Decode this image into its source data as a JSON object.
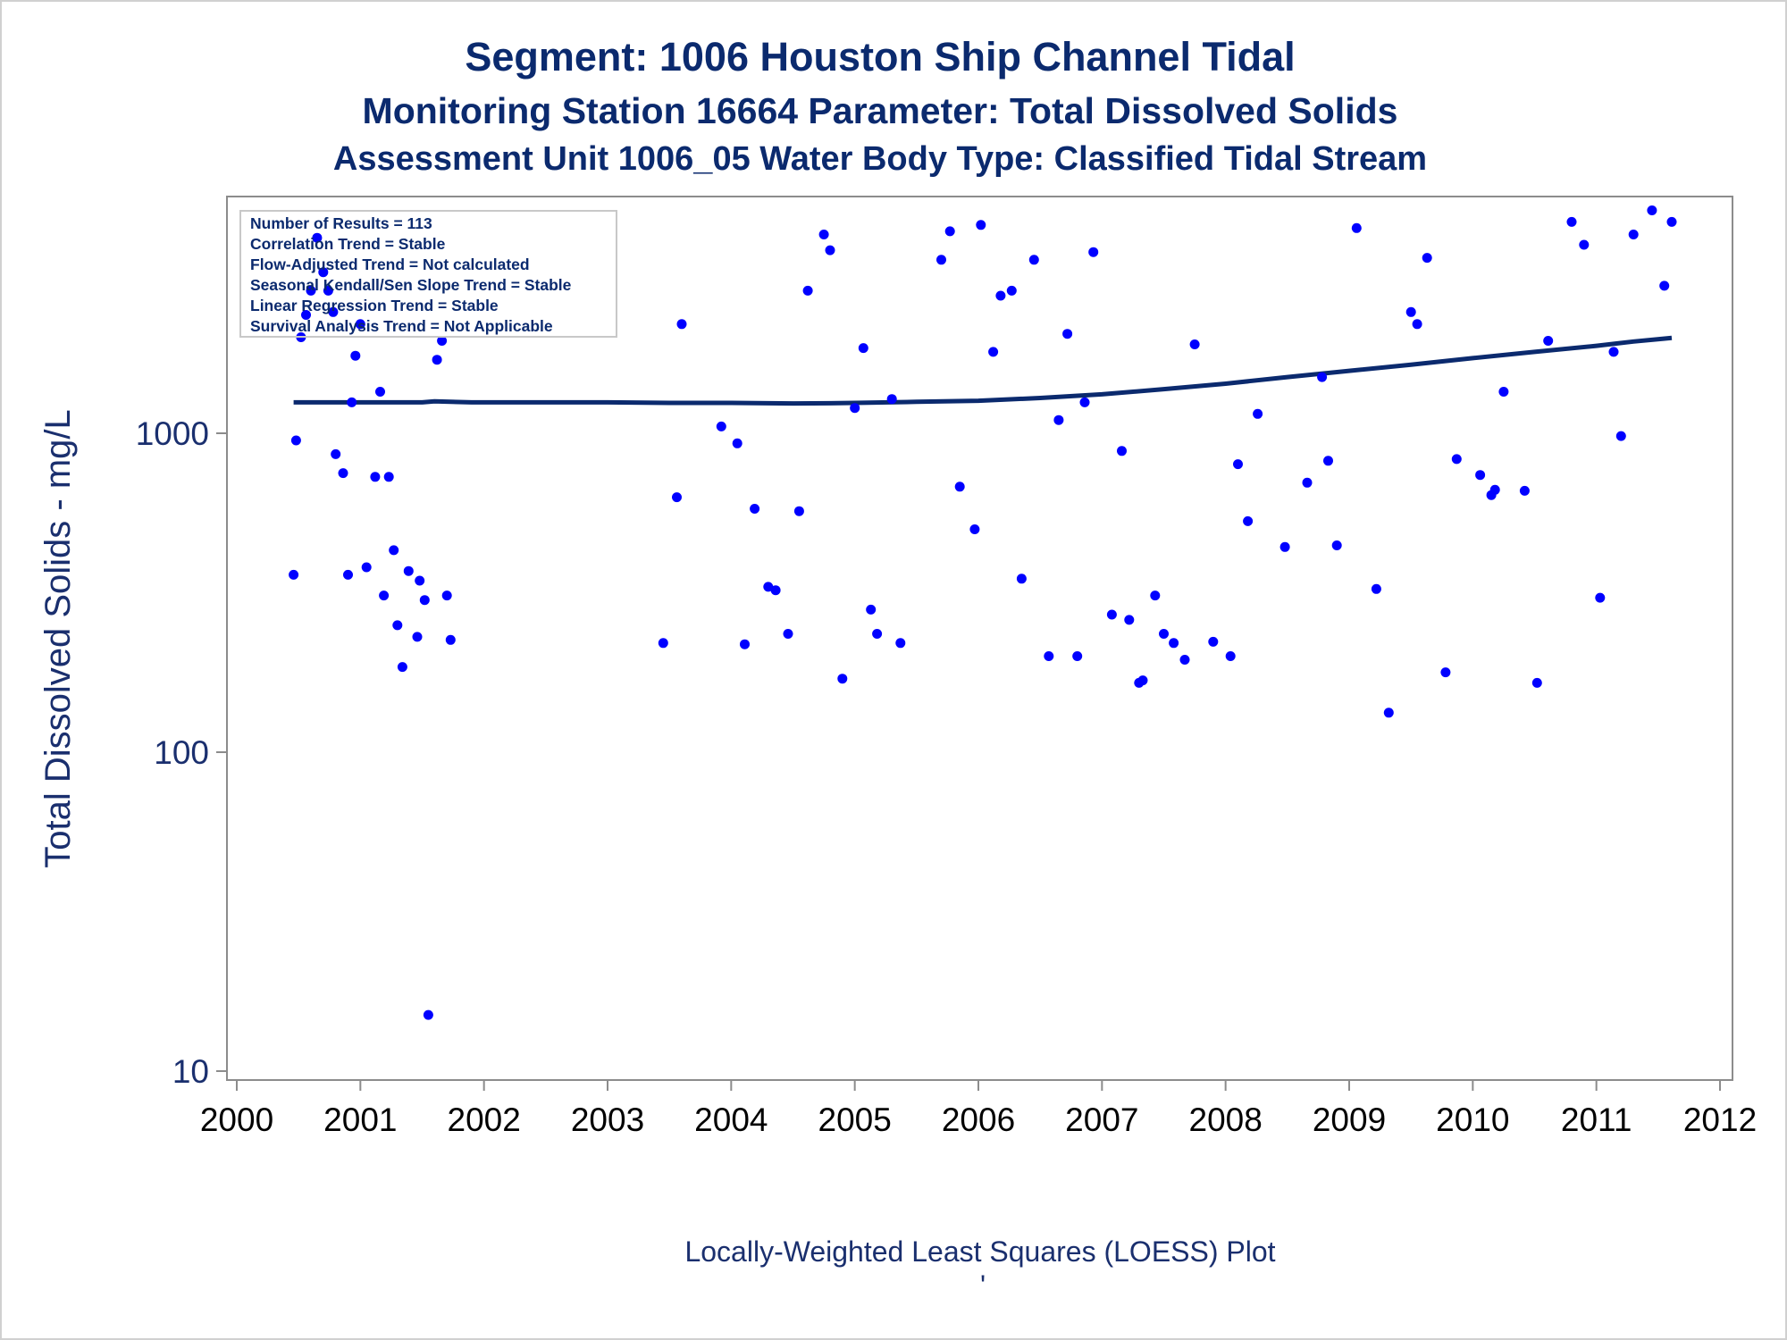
{
  "titles": {
    "line1": "Segment: 1006  Houston Ship Channel Tidal",
    "line2": "Monitoring Station 16664 Parameter: Total Dissolved Solids",
    "line3": "Assessment Unit 1006_05   Water Body Type: Classified Tidal Stream"
  },
  "inset": [
    "Number of Results = 113",
    "Correlation Trend = Stable",
    "Flow-Adjusted Trend = Not calculated",
    "Seasonal Kendall/Sen Slope Trend = Stable",
    "Linear Regression Trend = Stable",
    "Survival Analysis Trend = Not Applicable"
  ],
  "footnote": "Locally-Weighted Least Squares (LOESS) Plot",
  "footnote2": "'",
  "colors": {
    "points": "#0000ff",
    "loess": "#0b2a6e",
    "text": "#0b2a6e"
  },
  "chart_data": {
    "type": "scatter",
    "title": "Segment: 1006  Houston Ship Channel Tidal",
    "xlabel": "",
    "ylabel": "Total Dissolved Solids - mg/L",
    "x_ticks": [
      "2000",
      "2001",
      "2002",
      "2003",
      "2004",
      "2005",
      "2006",
      "2007",
      "2008",
      "2009",
      "2010",
      "2011",
      "2012"
    ],
    "y_ticks": [
      "10",
      "100",
      "1000"
    ],
    "xlim": [
      2000,
      2012.2
    ],
    "ylim": [
      9,
      5000
    ],
    "y_scale": "log",
    "grid": false,
    "series": [
      {
        "values": [
          [
            2000.46,
            360
          ],
          [
            2000.48,
            950
          ],
          [
            2000.52,
            2000
          ],
          [
            2000.56,
            2350
          ],
          [
            2000.6,
            2800
          ],
          [
            2000.65,
            4100
          ],
          [
            2000.7,
            3200
          ],
          [
            2000.74,
            2800
          ],
          [
            2000.78,
            2400
          ],
          [
            2000.8,
            860
          ],
          [
            2000.86,
            750
          ],
          [
            2000.9,
            360
          ],
          [
            2000.93,
            1250
          ],
          [
            2000.96,
            1750
          ],
          [
            2001.0,
            2200
          ],
          [
            2001.05,
            380
          ],
          [
            2001.12,
            730
          ],
          [
            2001.16,
            1350
          ],
          [
            2001.19,
            310
          ],
          [
            2001.23,
            730
          ],
          [
            2001.27,
            430
          ],
          [
            2001.3,
            250
          ],
          [
            2001.34,
            185
          ],
          [
            2001.39,
            370
          ],
          [
            2001.46,
            230
          ],
          [
            2001.48,
            345
          ],
          [
            2001.52,
            300
          ],
          [
            2001.55,
            15
          ],
          [
            2001.62,
            1700
          ],
          [
            2001.66,
            1950
          ],
          [
            2001.7,
            310
          ],
          [
            2001.73,
            225
          ],
          [
            2003.45,
            220
          ],
          [
            2003.56,
            630
          ],
          [
            2003.6,
            2200
          ],
          [
            2003.92,
            1050
          ],
          [
            2004.05,
            930
          ],
          [
            2004.11,
            218
          ],
          [
            2004.19,
            580
          ],
          [
            2004.3,
            330
          ],
          [
            2004.36,
            322
          ],
          [
            2004.46,
            235
          ],
          [
            2004.55,
            570
          ],
          [
            2004.62,
            2800
          ],
          [
            2004.75,
            4200
          ],
          [
            2004.8,
            3750
          ],
          [
            2004.9,
            170
          ],
          [
            2005.0,
            1200
          ],
          [
            2005.07,
            1850
          ],
          [
            2005.13,
            280
          ],
          [
            2005.18,
            235
          ],
          [
            2005.3,
            1280
          ],
          [
            2005.37,
            220
          ],
          [
            2005.7,
            3500
          ],
          [
            2005.77,
            4300
          ],
          [
            2005.85,
            680
          ],
          [
            2005.97,
            500
          ],
          [
            2006.02,
            4500
          ],
          [
            2006.12,
            1800
          ],
          [
            2006.18,
            2700
          ],
          [
            2006.27,
            2800
          ],
          [
            2006.35,
            350
          ],
          [
            2006.45,
            3500
          ],
          [
            2006.57,
            200
          ],
          [
            2006.65,
            1100
          ],
          [
            2006.72,
            2050
          ],
          [
            2006.8,
            200
          ],
          [
            2006.86,
            1250
          ],
          [
            2006.93,
            3700
          ],
          [
            2007.08,
            270
          ],
          [
            2007.16,
            880
          ],
          [
            2007.22,
            260
          ],
          [
            2007.3,
            165
          ],
          [
            2007.33,
            168
          ],
          [
            2007.43,
            310
          ],
          [
            2007.5,
            235
          ],
          [
            2007.58,
            220
          ],
          [
            2007.67,
            195
          ],
          [
            2007.75,
            1900
          ],
          [
            2007.9,
            222
          ],
          [
            2008.04,
            200
          ],
          [
            2008.1,
            800
          ],
          [
            2008.18,
            530
          ],
          [
            2008.26,
            1150
          ],
          [
            2008.48,
            440
          ],
          [
            2008.66,
            700
          ],
          [
            2008.78,
            1500
          ],
          [
            2008.83,
            820
          ],
          [
            2008.9,
            445
          ],
          [
            2009.06,
            4400
          ],
          [
            2009.22,
            325
          ],
          [
            2009.32,
            133
          ],
          [
            2009.5,
            2400
          ],
          [
            2009.55,
            2200
          ],
          [
            2009.63,
            3550
          ],
          [
            2009.78,
            178
          ],
          [
            2009.87,
            830
          ],
          [
            2010.06,
            740
          ],
          [
            2010.15,
            640
          ],
          [
            2010.18,
            665
          ],
          [
            2010.25,
            1350
          ],
          [
            2010.42,
            660
          ],
          [
            2010.52,
            165
          ],
          [
            2010.61,
            1950
          ],
          [
            2010.8,
            4600
          ],
          [
            2010.9,
            3900
          ],
          [
            2011.03,
            305
          ],
          [
            2011.14,
            1800
          ],
          [
            2011.2,
            980
          ],
          [
            2011.3,
            4200
          ],
          [
            2011.45,
            5000
          ],
          [
            2011.55,
            2900
          ],
          [
            2011.61,
            4600
          ]
        ]
      },
      {
        "type": "line",
        "values": [
          [
            2000.46,
            1250
          ],
          [
            2001.0,
            1250
          ],
          [
            2001.5,
            1250
          ],
          [
            2001.6,
            1260
          ],
          [
            2001.9,
            1250
          ],
          [
            2002.5,
            1250
          ],
          [
            2003.0,
            1250
          ],
          [
            2003.5,
            1245
          ],
          [
            2004.0,
            1245
          ],
          [
            2004.5,
            1240
          ],
          [
            2004.8,
            1242
          ],
          [
            2005.0,
            1245
          ],
          [
            2005.5,
            1255
          ],
          [
            2006.0,
            1265
          ],
          [
            2006.5,
            1290
          ],
          [
            2007.0,
            1325
          ],
          [
            2007.5,
            1375
          ],
          [
            2008.0,
            1430
          ],
          [
            2008.5,
            1500
          ],
          [
            2009.0,
            1570
          ],
          [
            2009.5,
            1640
          ],
          [
            2010.0,
            1720
          ],
          [
            2010.5,
            1800
          ],
          [
            2011.0,
            1880
          ],
          [
            2011.3,
            1940
          ],
          [
            2011.61,
            1990
          ]
        ]
      }
    ]
  }
}
